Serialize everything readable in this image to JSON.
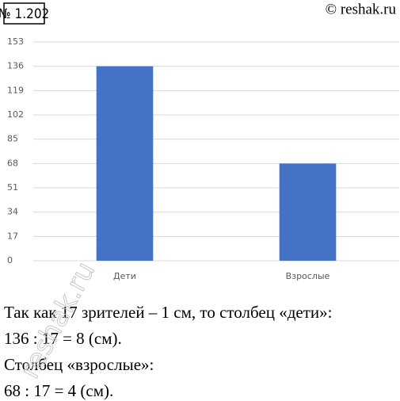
{
  "header": {
    "number": "№ 1.202",
    "source": "© reshak.ru"
  },
  "chart_data": {
    "type": "bar",
    "categories": [
      "Дети",
      "Взрослые"
    ],
    "values": [
      136,
      68
    ],
    "color": "#4472c4",
    "ylim": [
      0,
      153
    ],
    "yticks": [
      0,
      17,
      34,
      51,
      68,
      85,
      102,
      119,
      136,
      153
    ],
    "grid": true
  },
  "text": [
    "Так как 17 зрителей – 1 см, то столбец «дети»:",
    "136 : 17 = 8 (см).",
    "Столбец «взрослые»:",
    "68 : 17 = 4 (см)."
  ],
  "watermark": "reshak.ru"
}
